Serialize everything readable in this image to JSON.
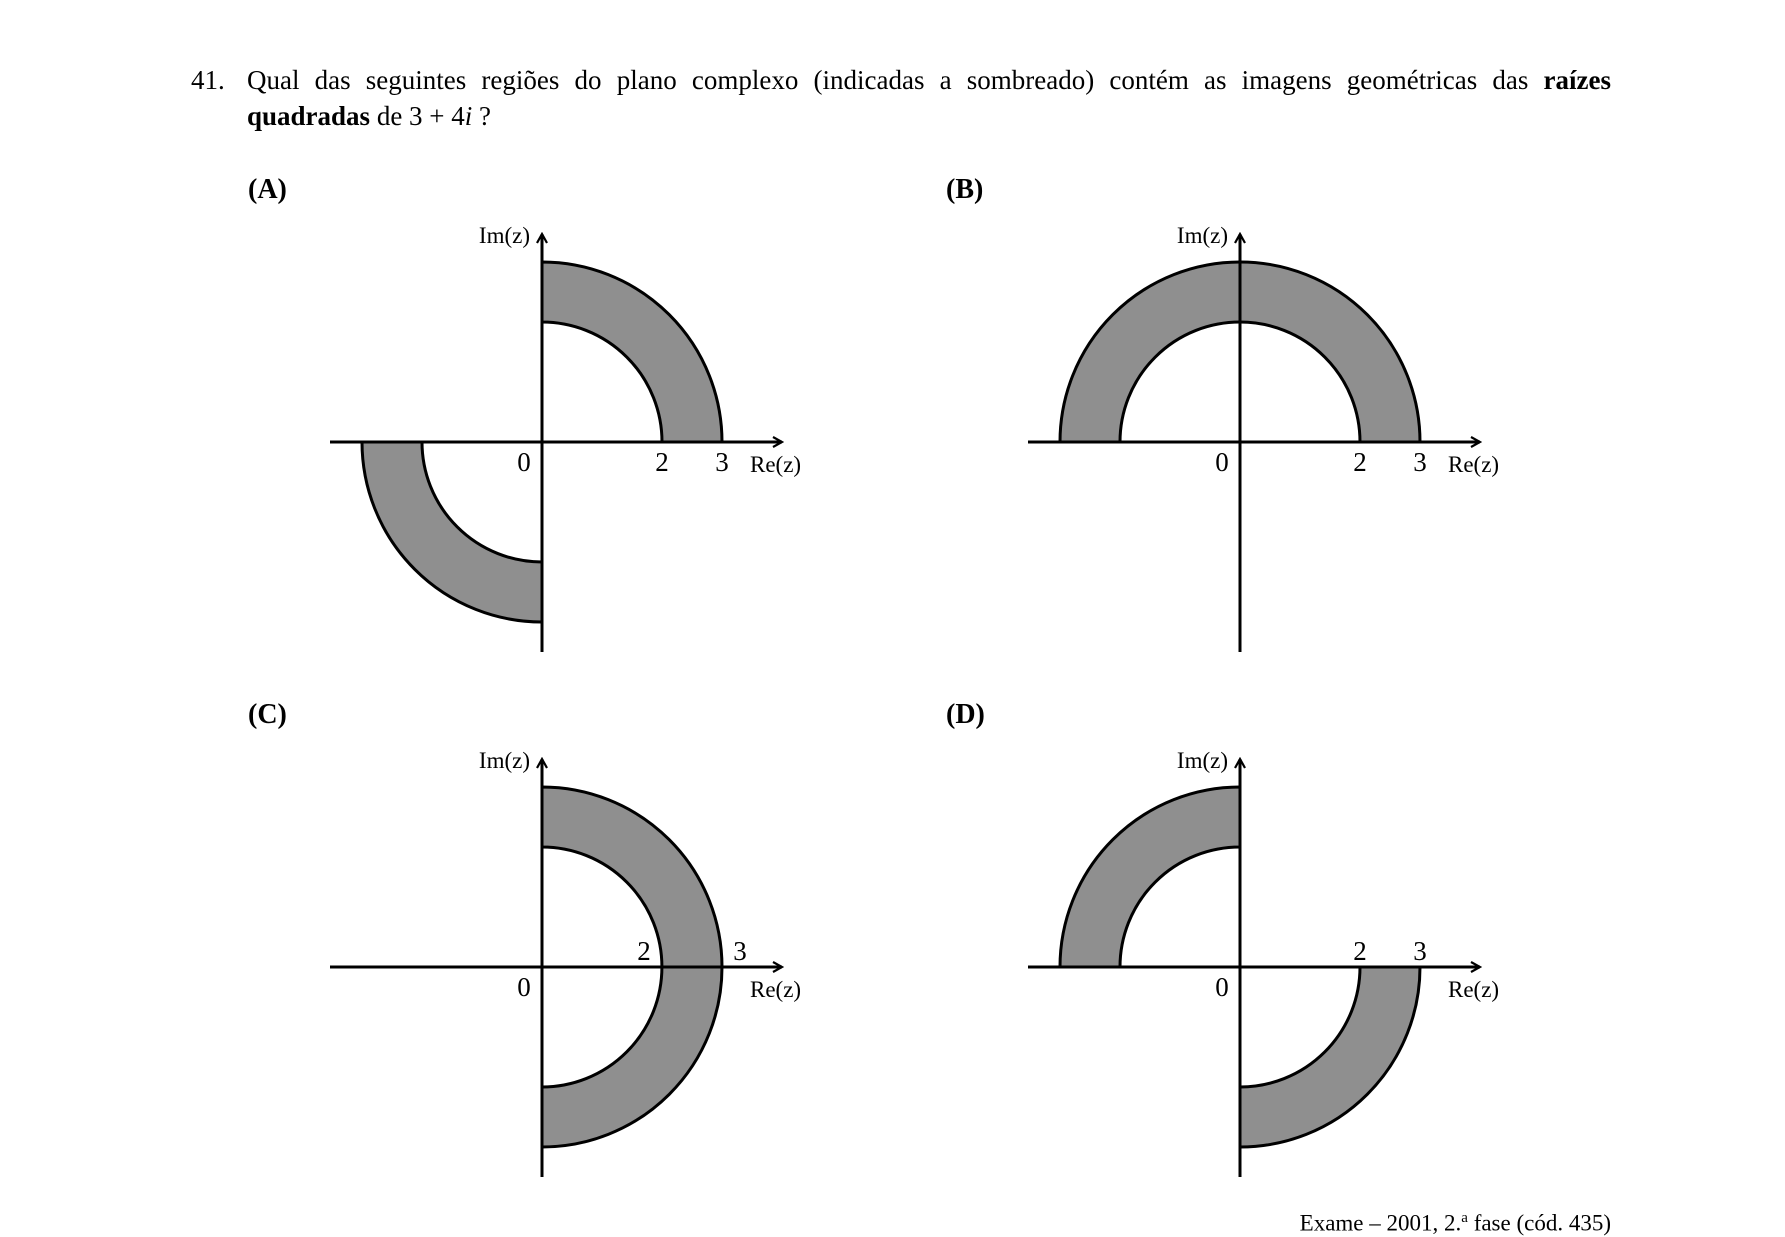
{
  "question": {
    "number": "41.",
    "text_before": "Qual das seguintes regiões do plano complexo (indicadas a sombreado) contém as imagens geométricas das ",
    "text_bold": "raízes quadradas",
    "text_mid": " de 3 + 4",
    "text_italic": "i",
    "text_after": " ?"
  },
  "options": [
    {
      "label": "(A)",
      "axis_x_label": "Re(z)",
      "axis_y_label": "Im(z)",
      "origin_label": "0",
      "tick_labels": [
        "2",
        "3"
      ],
      "shaded_regions": [
        "first-quadrant annulus",
        "third-quadrant annulus"
      ]
    },
    {
      "label": "(B)",
      "axis_x_label": "Re(z)",
      "axis_y_label": "Im(z)",
      "origin_label": "0",
      "tick_labels": [
        "2",
        "3"
      ],
      "shaded_regions": [
        "upper half annulus"
      ]
    },
    {
      "label": "(C)",
      "axis_x_label": "Re(z)",
      "axis_y_label": "Im(z)",
      "origin_label": "0",
      "tick_labels": [
        "2",
        "3"
      ],
      "shaded_regions": [
        "right half annulus"
      ]
    },
    {
      "label": "(D)",
      "axis_x_label": "Re(z)",
      "axis_y_label": "Im(z)",
      "origin_label": "0",
      "tick_labels": [
        "2",
        "3"
      ],
      "shaded_regions": [
        "second-quadrant annulus",
        "fourth-quadrant annulus"
      ]
    }
  ],
  "annulus": {
    "inner_radius": 2,
    "outer_radius": 3
  },
  "colors": {
    "shade": "#8f8f8f",
    "stroke": "#000000"
  },
  "footer": {
    "prefix": "Exame – 2001, 2.",
    "superscript": "a",
    "suffix": " fase (cód. 435)"
  }
}
